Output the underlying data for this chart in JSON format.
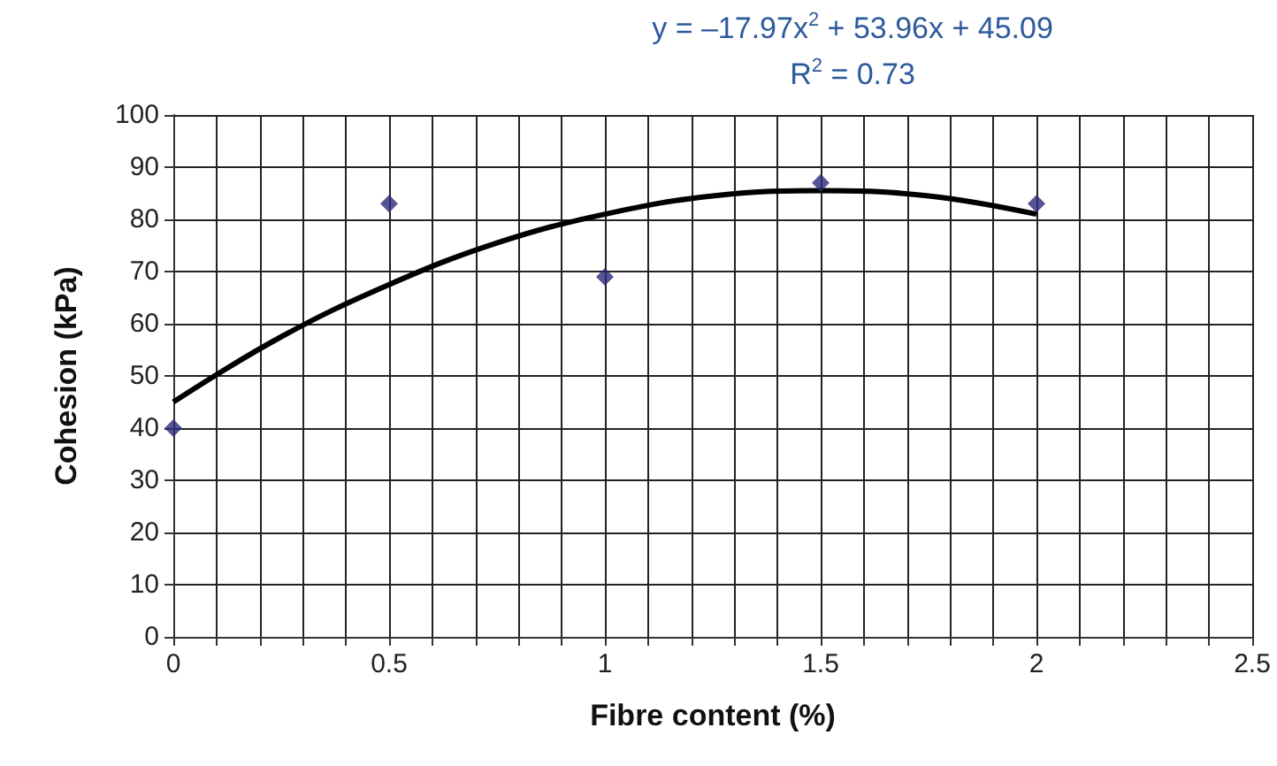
{
  "chart_data": {
    "type": "scatter",
    "xlabel": "Fibre content (%)",
    "ylabel": "Cohesion (kPa)",
    "annotations": [
      "y = –17.97x$^{2}$ + 53.96x + 45.09",
      "R$^{2}$ = 0.73"
    ],
    "series": [
      {
        "color": "#2b2b7a",
        "marker": "diamond",
        "x": [
          0,
          0.5,
          1,
          1.5,
          2
        ],
        "values": [
          40,
          83,
          69,
          87,
          83
        ]
      },
      {
        "type": "line",
        "color": "#000000",
        "marker": "none",
        "line_style": "solid",
        "x": [
          0,
          0.25,
          0.5,
          0.75,
          1,
          1.25,
          1.5,
          1.75,
          2
        ],
        "values": [
          45,
          57.5,
          67.5,
          75.5,
          81,
          84.5,
          85.5,
          84.5,
          81
        ]
      }
    ],
    "xlim": [
      0,
      2.5
    ],
    "xticks": [
      0,
      {
        "value": 0.1,
        "label": null
      },
      {
        "value": 0.2,
        "label": null
      },
      {
        "value": 0.3,
        "label": null
      },
      {
        "value": 0.4,
        "label": null
      },
      0.5,
      {
        "value": 0.6,
        "label": null
      },
      {
        "value": 0.7,
        "label": null
      },
      {
        "value": 0.8,
        "label": null
      },
      {
        "value": 0.9,
        "label": null
      },
      1,
      {
        "value": 1.1,
        "label": null
      },
      {
        "value": 1.2,
        "label": null
      },
      {
        "value": 1.3,
        "label": null
      },
      {
        "value": 1.4,
        "label": null
      },
      1.5,
      {
        "value": 1.6,
        "label": null
      },
      {
        "value": 1.7,
        "label": null
      },
      {
        "value": 1.8,
        "label": null
      },
      {
        "value": 1.9,
        "label": null
      },
      2,
      {
        "value": 2.1,
        "label": null
      },
      {
        "value": 2.2,
        "label": null
      },
      {
        "value": 2.3,
        "label": null
      },
      {
        "value": 2.4,
        "label": null
      },
      2.5
    ],
    "ylim": [
      0,
      100
    ],
    "yticks": [
      0,
      10,
      20,
      30,
      40,
      50,
      60,
      70,
      80,
      90,
      100
    ],
    "grid": true
  }
}
